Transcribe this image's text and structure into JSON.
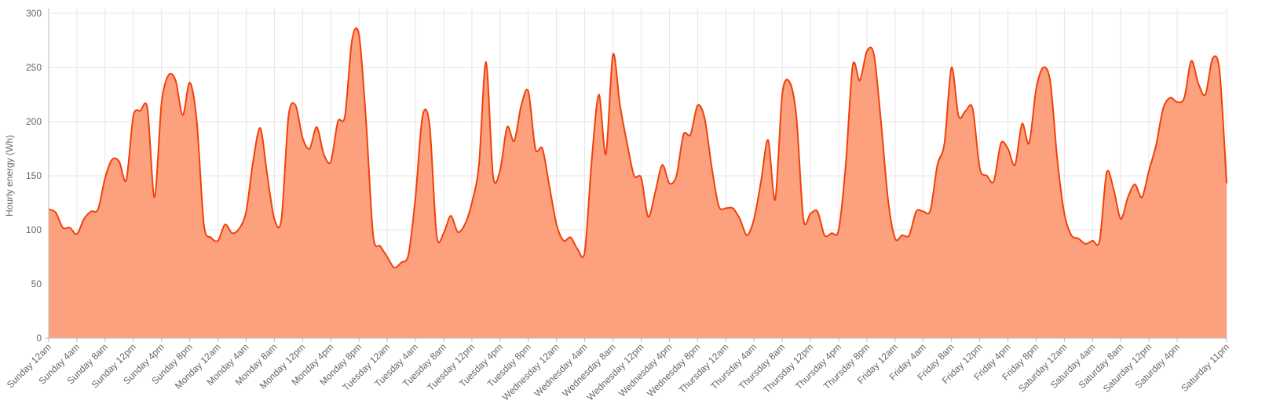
{
  "chart_data": {
    "type": "area",
    "ylabel": "Hourly energy (Wh)",
    "ylim": [
      0,
      300
    ],
    "yticks": [
      "0",
      "50",
      "100",
      "150",
      "200",
      "250",
      "300"
    ],
    "grid": true,
    "fill_color": "#fca07e",
    "line_color": "#f1410a",
    "x_tick_labels": [
      "Sunday 12am",
      "Sunday 4am",
      "Sunday 8am",
      "Sunday 12pm",
      "Sunday 4pm",
      "Sunday 8pm",
      "Monday 12am",
      "Monday 4am",
      "Monday 8am",
      "Monday 12pm",
      "Monday 4pm",
      "Monday 8pm",
      "Tuesday 12am",
      "Tuesday 4am",
      "Tuesday 8am",
      "Tuesday 12pm",
      "Tuesday 4pm",
      "Tuesday 8pm",
      "Wednesday 12am",
      "Wednesday 4am",
      "Wednesday 8am",
      "Wednesday 12pm",
      "Wednesday 4pm",
      "Wednesday 8pm",
      "Thursday 12am",
      "Thursday 4am",
      "Thursday 8am",
      "Thursday 12pm",
      "Thursday 4pm",
      "Thursday 8pm",
      "Friday 12am",
      "Friday 4am",
      "Friday 8am",
      "Friday 12pm",
      "Friday 4pm",
      "Friday 8pm",
      "Saturday 12am",
      "Saturday 4am",
      "Saturday 8am",
      "Saturday 12pm",
      "Saturday 4pm",
      "Saturday 11pm"
    ],
    "series": [
      {
        "values": [
          119,
          116,
          102,
          102,
          96,
          110,
          117,
          119,
          148,
          165,
          163,
          146,
          205,
          210,
          212,
          130,
          217,
          243,
          238,
          206,
          236,
          200,
          105,
          93,
          90,
          105,
          97,
          101,
          117,
          164,
          194,
          150,
          110,
          110,
          205,
          215,
          185,
          175,
          195,
          170,
          163,
          200,
          205,
          275,
          280,
          200,
          95,
          85,
          75,
          65,
          70,
          77,
          130,
          205,
          197,
          95,
          97,
          113,
          98,
          105,
          125,
          160,
          255,
          150,
          155,
          195,
          182,
          215,
          228,
          175,
          175,
          140,
          105,
          90,
          93,
          82,
          80,
          165,
          225,
          170,
          262,
          215,
          180,
          150,
          148,
          112,
          135,
          160,
          143,
          150,
          188,
          188,
          215,
          203,
          158,
          122,
          120,
          120,
          110,
          95,
          110,
          145,
          183,
          128,
          225,
          237,
          205,
          110,
          115,
          117,
          95,
          97,
          100,
          160,
          252,
          238,
          265,
          262,
          200,
          128,
          92,
          95,
          95,
          117,
          117,
          118,
          160,
          180,
          250,
          205,
          210,
          212,
          157,
          150,
          145,
          180,
          175,
          160,
          198,
          180,
          230,
          250,
          237,
          165,
          115,
          95,
          92,
          87,
          90,
          90,
          153,
          137,
          110,
          130,
          142,
          130,
          155,
          178,
          212,
          222,
          218,
          222,
          256,
          235,
          225,
          258,
          247,
          143
        ]
      }
    ]
  }
}
